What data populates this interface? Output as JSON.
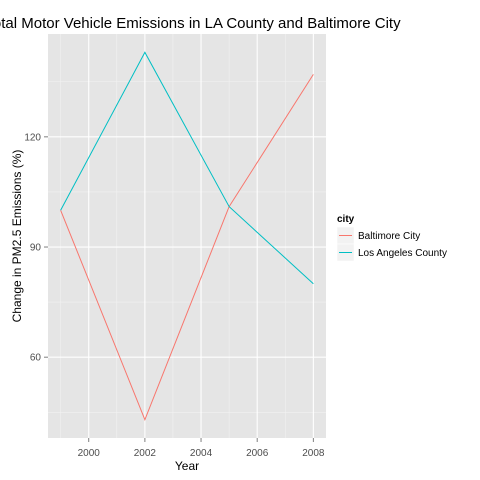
{
  "chart_data": {
    "type": "line",
    "title": "Total Motor Vehicle Emissions in LA County and Baltimore City",
    "xlabel": "Year",
    "ylabel": "Change in PM2.5 Emissions (%)",
    "x": [
      1999,
      2002,
      2005,
      2008
    ],
    "xlim": [
      1998.55,
      2008.45
    ],
    "ylim": [
      38,
      148
    ],
    "xticks": [
      2000,
      2002,
      2004,
      2006,
      2008
    ],
    "xtick_labels": [
      "2000",
      "2002",
      "2004",
      "2006",
      "2008"
    ],
    "yticks": [
      60,
      90,
      120
    ],
    "ytick_labels": [
      "60",
      "90",
      "120"
    ],
    "grid": true,
    "legend": {
      "title": "city",
      "position": "right"
    },
    "series": [
      {
        "name": "Baltimore City",
        "color": "#F8766D",
        "values": [
          100,
          43,
          101,
          137
        ]
      },
      {
        "name": "Los Angeles County",
        "color": "#00BFC4",
        "values": [
          100,
          143,
          101,
          80
        ]
      }
    ],
    "colors": {
      "panel": "#e5e5e5",
      "grid_major": "#ffffff",
      "grid_minor": "#f2f2f2"
    }
  }
}
